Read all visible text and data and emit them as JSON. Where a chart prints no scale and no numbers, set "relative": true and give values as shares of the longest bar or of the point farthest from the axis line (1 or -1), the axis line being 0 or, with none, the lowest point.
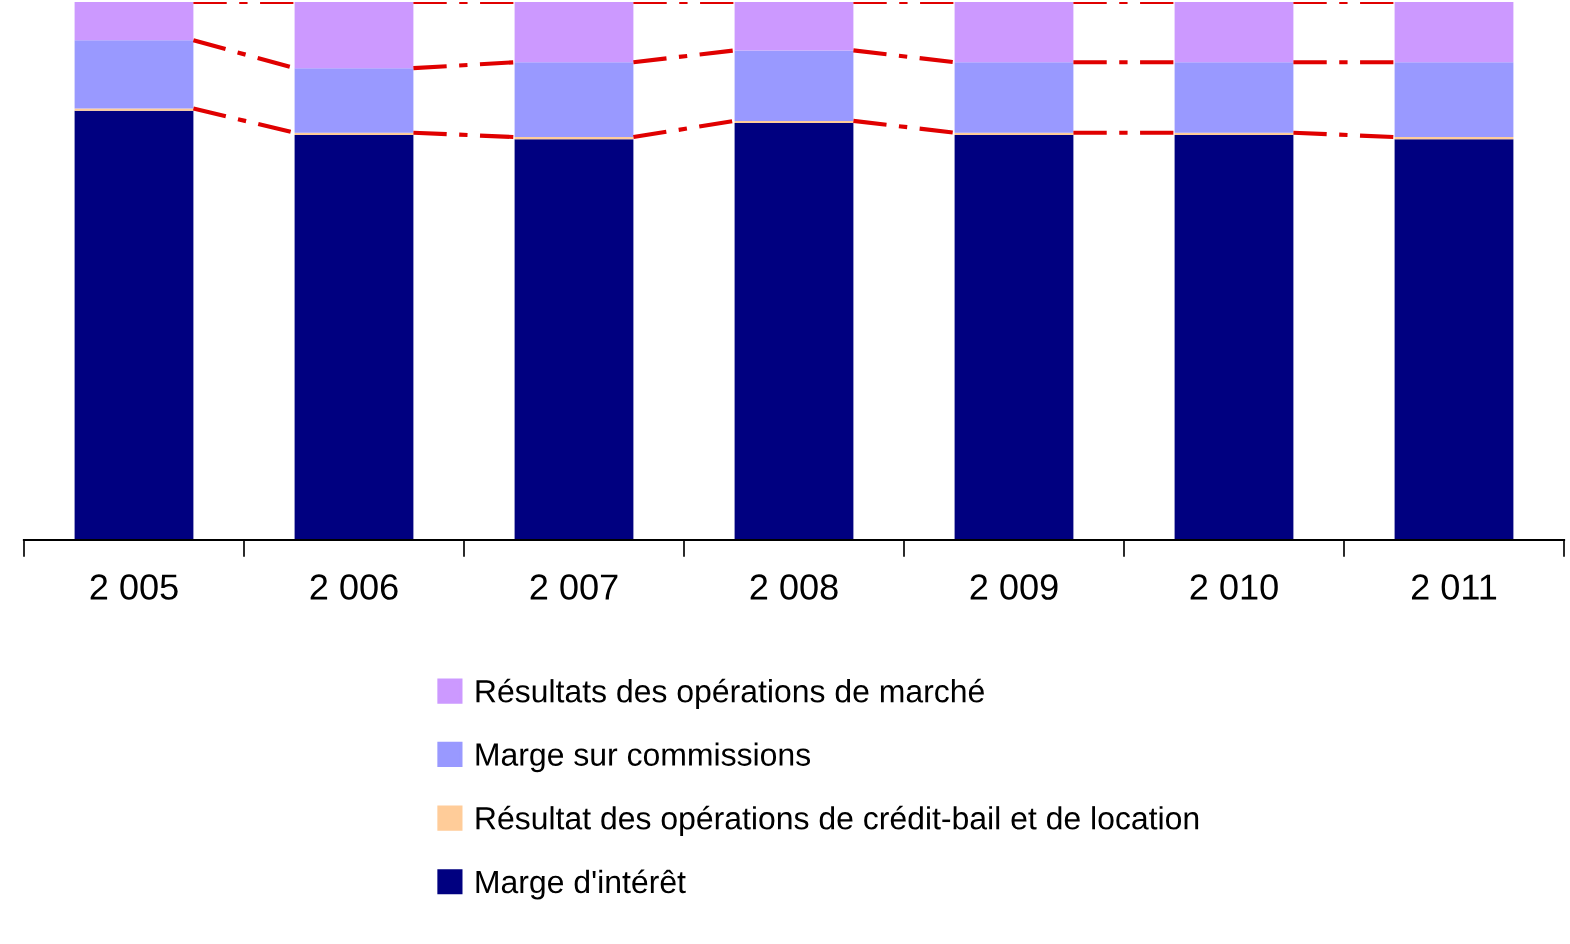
{
  "chart_data": {
    "type": "bar",
    "stacked": true,
    "relative": true,
    "categories": [
      "2 005",
      "2 006",
      "2 007",
      "2 008",
      "2 009",
      "2 010",
      "2 011"
    ],
    "series": [
      {
        "name": "Marge d'intérêt",
        "color": "#000080",
        "values": [
          0.798,
          0.753,
          0.745,
          0.775,
          0.753,
          0.753,
          0.745
        ]
      },
      {
        "name": "Résultat des opérations de crédit-bail et de location",
        "color": "#ffcc99",
        "values": [
          0.004,
          0.004,
          0.004,
          0.004,
          0.004,
          0.004,
          0.004
        ]
      },
      {
        "name": "Marge sur commissions",
        "color": "#9999ff",
        "values": [
          0.127,
          0.12,
          0.139,
          0.131,
          0.131,
          0.131,
          0.139
        ]
      },
      {
        "name": "Résultats des opérations de marché",
        "color": "#cc99ff",
        "values": [
          0.071,
          0.123,
          0.112,
          0.09,
          0.112,
          0.112,
          0.112
        ]
      }
    ],
    "legend": "bottom",
    "grid": false
  }
}
